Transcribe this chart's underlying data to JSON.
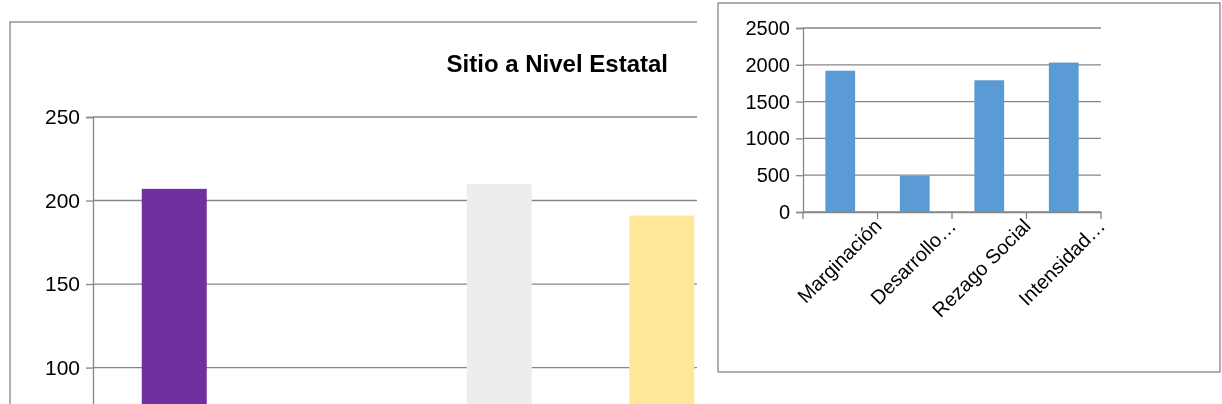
{
  "chart_data": [
    {
      "type": "bar",
      "title": "Sitio a Nivel Estatal",
      "categories": [
        null,
        null,
        null,
        null
      ],
      "values": [
        207,
        null,
        210,
        191
      ],
      "colors": [
        "#7030a0",
        null,
        "#ededed",
        "#ffe699"
      ],
      "ylim": [
        74,
        250
      ],
      "yticks": [
        100,
        150,
        200,
        250
      ],
      "grid": "y"
    },
    {
      "type": "bar",
      "categories": [
        "Marginación",
        "Desarrollo…",
        "Rezago Social",
        "Intensidad…"
      ],
      "values": [
        1920,
        490,
        1790,
        2030
      ],
      "color": "#5b9bd5",
      "ylim": [
        0,
        2500
      ],
      "yticks": [
        0,
        500,
        1000,
        1500,
        2000,
        2500
      ],
      "grid": "y"
    }
  ]
}
